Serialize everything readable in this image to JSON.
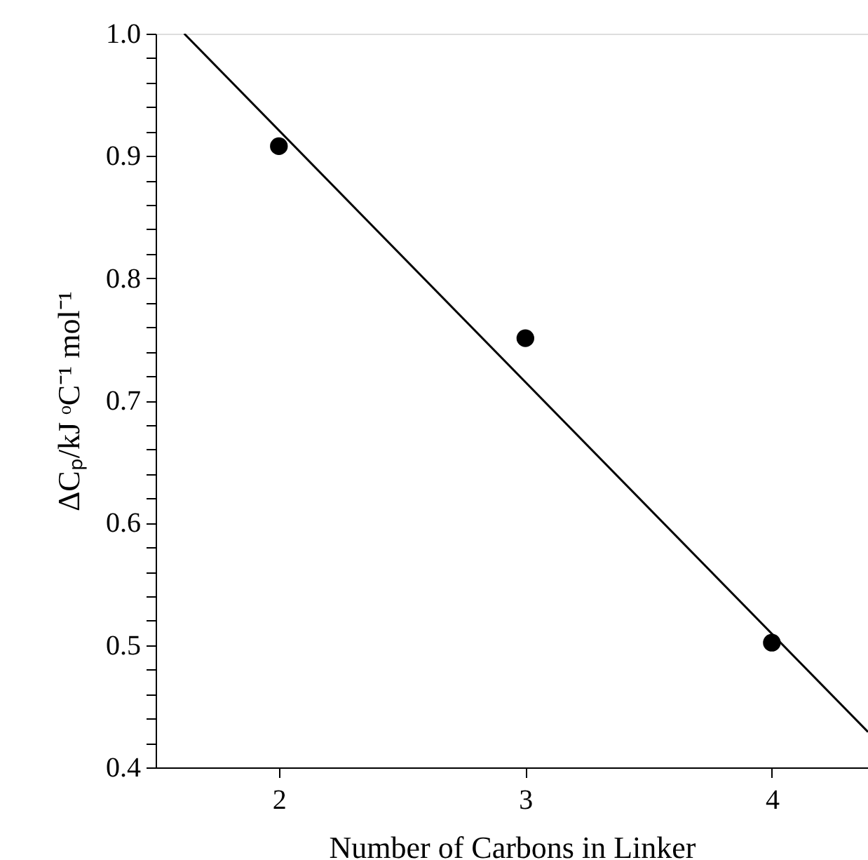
{
  "chart_data": {
    "type": "scatter",
    "xlabel": "Number of Carbons in Linker",
    "ylabel": "ΔCₚ/kJ ᵒC⁻¹ mol⁻¹",
    "x": [
      2,
      3,
      4
    ],
    "series": [
      {
        "type": "scatter",
        "color": "#000000",
        "marker": "circle",
        "values": [
          0.908,
          0.751,
          0.502
        ]
      },
      {
        "type": "line",
        "color": "#000000",
        "marker": "none",
        "line_style": "solid",
        "x": [
          1.616,
          4.39
        ],
        "values": [
          1.0,
          0.429
        ]
      }
    ],
    "xlim": [
      1.5,
      4.39
    ],
    "xticks": [
      2,
      3,
      4
    ],
    "ylim": [
      0.4,
      1.0
    ],
    "yticks": [
      0.4,
      {
        "value": 0.42,
        "label": null
      },
      {
        "value": 0.44,
        "label": null
      },
      {
        "value": 0.46,
        "label": null
      },
      {
        "value": 0.48,
        "label": null
      },
      0.5,
      {
        "value": 0.52,
        "label": null
      },
      {
        "value": 0.54,
        "label": null
      },
      {
        "value": 0.56,
        "label": null
      },
      {
        "value": 0.58,
        "label": null
      },
      0.6,
      {
        "value": 0.62,
        "label": null
      },
      {
        "value": 0.64,
        "label": null
      },
      {
        "value": 0.66,
        "label": null
      },
      {
        "value": 0.68,
        "label": null
      },
      0.7,
      {
        "value": 0.72,
        "label": null
      },
      {
        "value": 0.74,
        "label": null
      },
      {
        "value": 0.76,
        "label": null
      },
      {
        "value": 0.78,
        "label": null
      },
      0.8,
      {
        "value": 0.82,
        "label": null
      },
      {
        "value": 0.84,
        "label": null
      },
      {
        "value": 0.86,
        "label": null
      },
      {
        "value": 0.88,
        "label": null
      },
      0.9,
      {
        "value": 0.92,
        "label": null
      },
      {
        "value": 0.94,
        "label": null
      },
      {
        "value": 0.96,
        "label": null
      },
      {
        "value": 0.98,
        "label": null
      },
      {
        "value": 1.0,
        "label": "1.0"
      }
    ],
    "grid": false
  }
}
